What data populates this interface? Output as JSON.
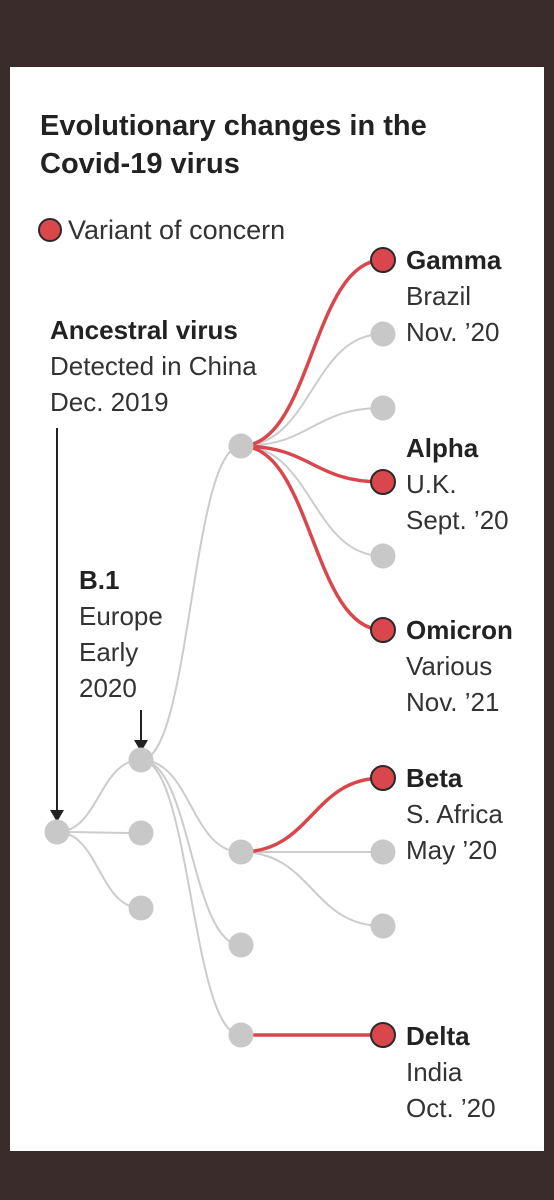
{
  "title": "Evolutionary changes in the Covid-19 virus",
  "legend": {
    "label": "Variant of concern",
    "color": "#d9474c"
  },
  "colors": {
    "concern": "#d9474c",
    "branch": "#cccccc",
    "node": "#c8c8c8",
    "arrow": "#222222"
  },
  "ancestral": {
    "name": "Ancestral virus",
    "line1": "Detected in China",
    "line2": "Dec. 2019"
  },
  "b1": {
    "name": "B.1",
    "line1": "Europe",
    "line2": "Early",
    "line3": "2020"
  },
  "variants": {
    "gamma": {
      "name": "Gamma",
      "line1": "Brazil",
      "line2": "Nov. ’20"
    },
    "alpha": {
      "name": "Alpha",
      "line1": "U.K.",
      "line2": "Sept. ’20"
    },
    "omicron": {
      "name": "Omicron",
      "line1": "Various",
      "line2": "Nov. ’21"
    },
    "beta": {
      "name": "Beta",
      "line1": "S. Africa",
      "line2": "May ’20"
    },
    "delta": {
      "name": "Delta",
      "line1": "India",
      "line2": "Oct. ’20"
    }
  }
}
